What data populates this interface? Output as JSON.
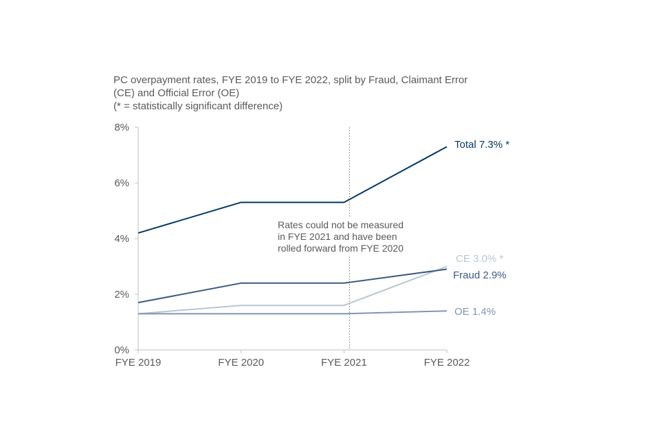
{
  "chart_data": {
    "type": "line",
    "title_lines": [
      "PC overpayment rates, FYE 2019 to FYE 2022, split by Fraud, Claimant Error",
      "(CE) and Official Error (OE)",
      "(* = statistically significant difference)"
    ],
    "categories": [
      "FYE 2019",
      "FYE 2020",
      "FYE 2021",
      "FYE 2022"
    ],
    "y_ticks": [
      "0%",
      "2%",
      "4%",
      "6%",
      "8%"
    ],
    "ylim": [
      0,
      8
    ],
    "grid": false,
    "series": [
      {
        "name": "Total 7.3% *",
        "values": [
          4.2,
          5.3,
          5.3,
          7.3
        ],
        "color": "#003865"
      },
      {
        "name": "Fraud 2.9%",
        "values": [
          1.7,
          2.4,
          2.4,
          2.9
        ],
        "color": "#3b5a80"
      },
      {
        "name": "CE 3.0% *",
        "values": [
          1.3,
          1.6,
          1.6,
          3.0
        ],
        "color": "#b8c5d6"
      },
      {
        "name": "OE 1.4%",
        "values": [
          1.3,
          1.3,
          1.3,
          1.4
        ],
        "color": "#8095b3"
      }
    ],
    "annotation": {
      "at_category": "FYE 2021",
      "lines": [
        "Rates could not be measured",
        "in FYE 2021 and have been",
        "rolled forward from FYE 2020"
      ]
    }
  }
}
